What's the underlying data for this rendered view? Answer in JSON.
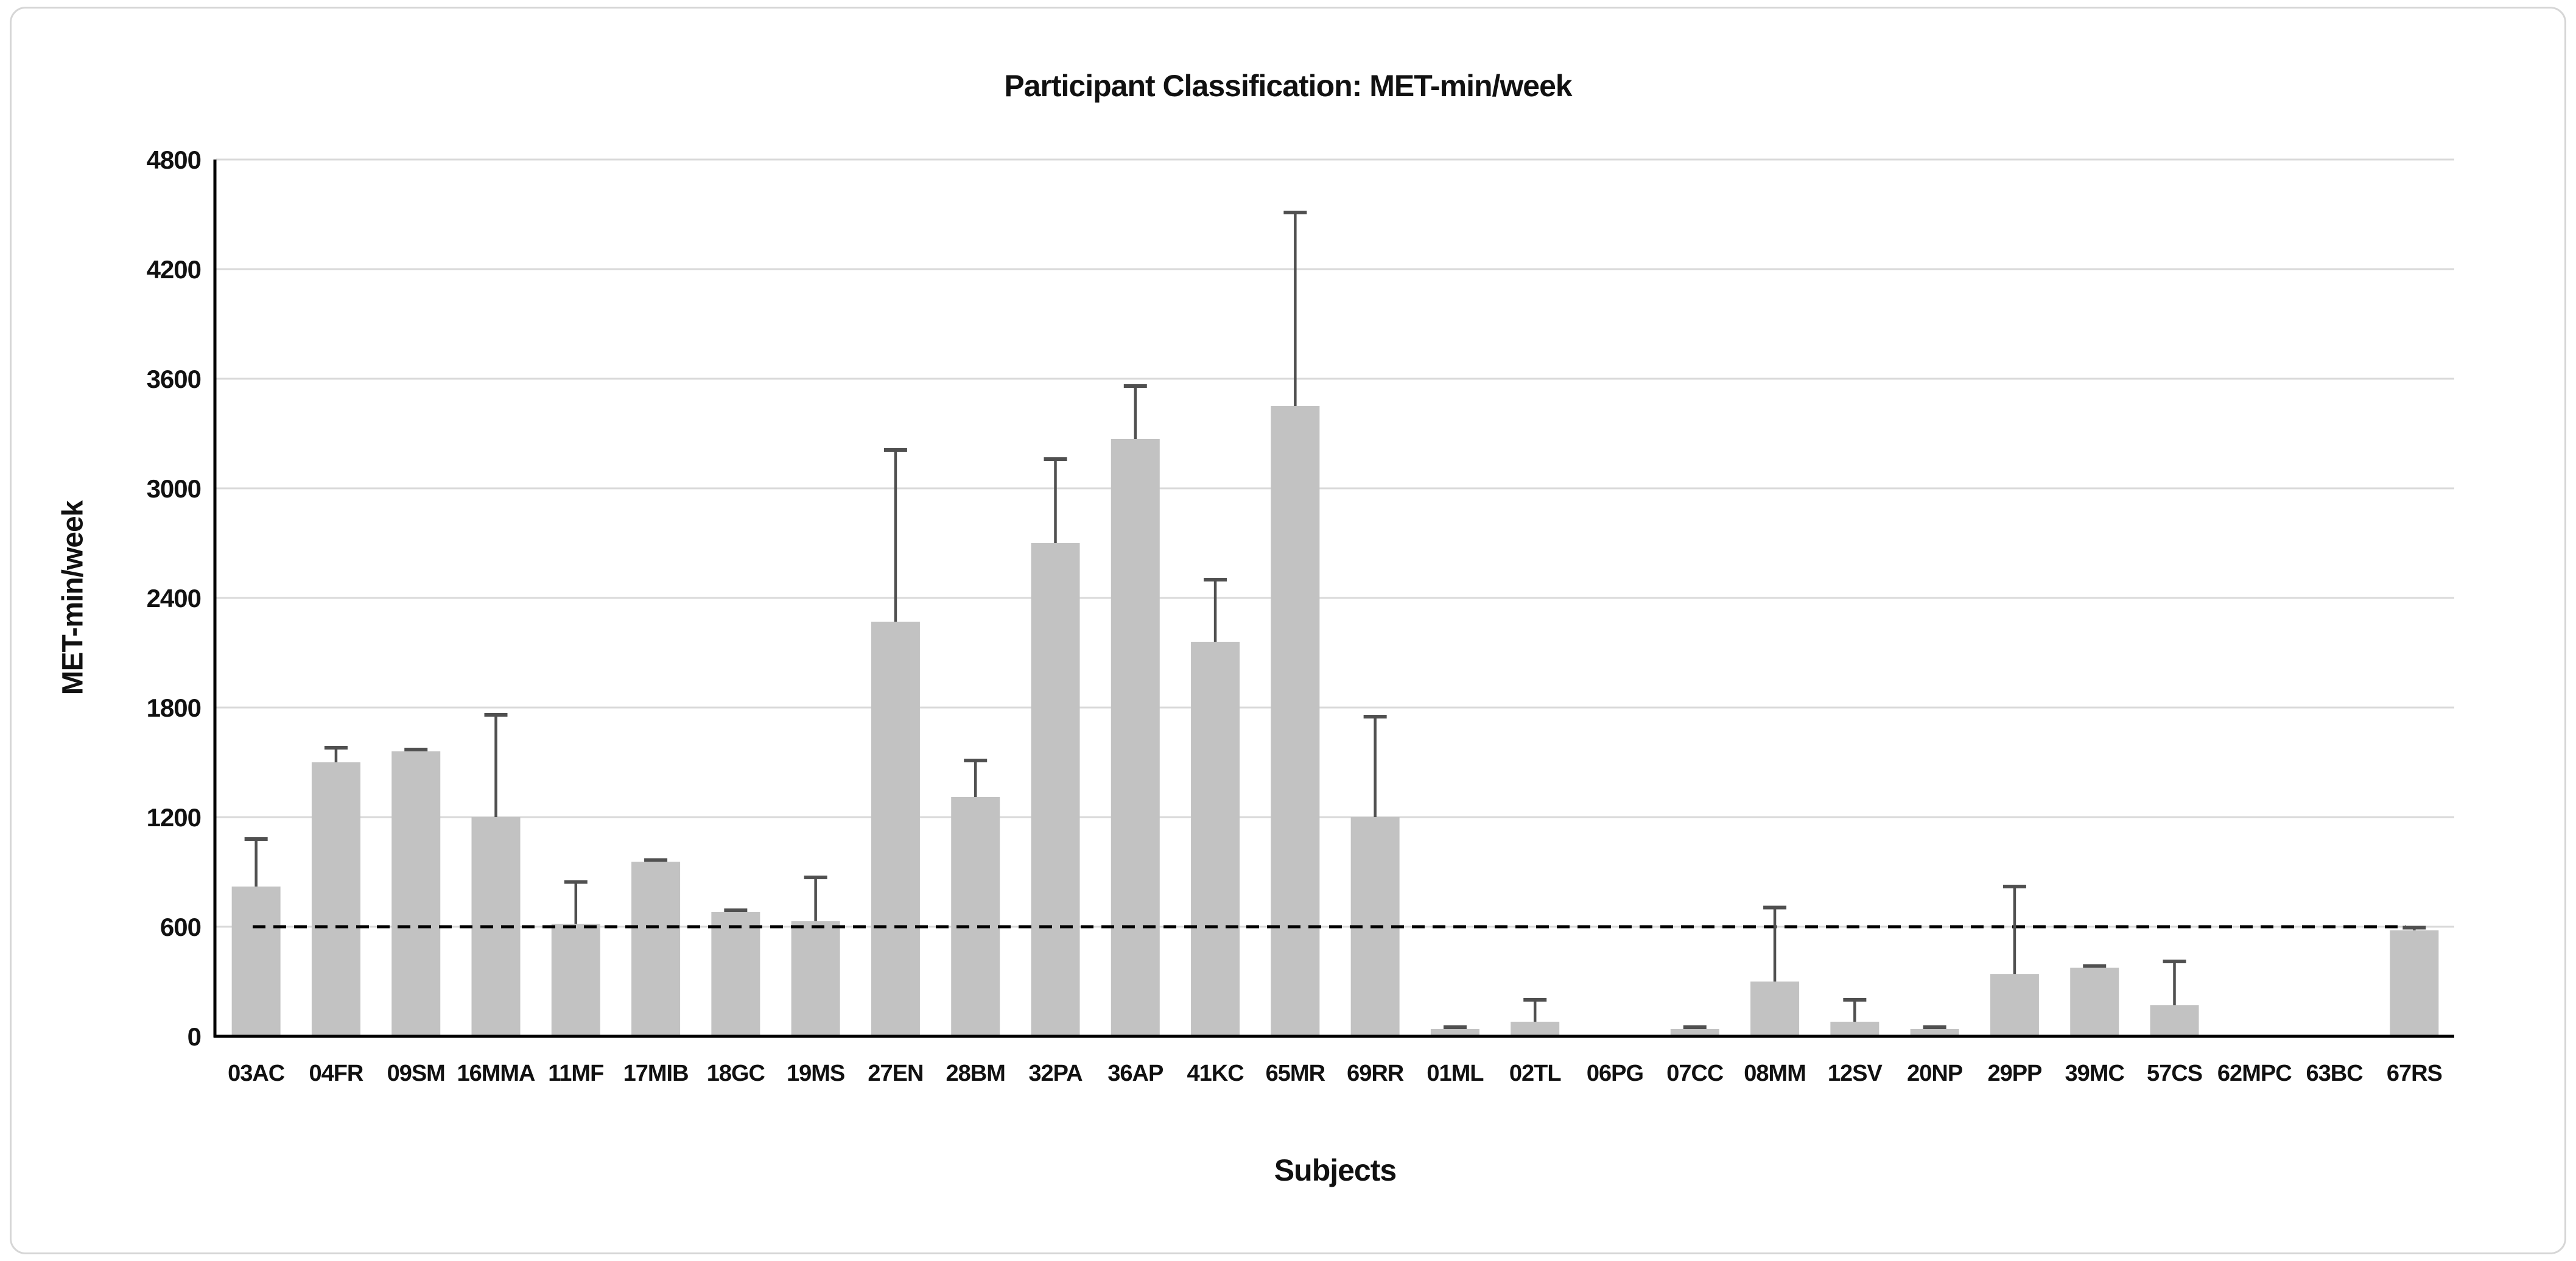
{
  "chart_data": {
    "type": "bar",
    "title": "Participant Classification: MET-min/week",
    "xlabel": "Subjects",
    "ylabel": "MET-min/week",
    "ylim": [
      0,
      4800
    ],
    "ytick_step": 600,
    "grid": true,
    "legend": "none",
    "reference_line": {
      "value": 600,
      "style": "dashed",
      "color": "#000000"
    },
    "bar_color": "#c2c2c2",
    "error_color": "#505050",
    "categories": [
      "03AC",
      "04FR",
      "09SM",
      "16MMA",
      "11MF",
      "17MIB",
      "18GC",
      "19MS",
      "27EN",
      "28BM",
      "32PA",
      "36AP",
      "41KC",
      "65MR",
      "69RR",
      "01ML",
      "02TL",
      "06PG",
      "07CC",
      "08MM",
      "12SV",
      "20NP",
      "29PP",
      "39MC",
      "57CS",
      "62MPC",
      "63BC",
      "67RS"
    ],
    "values": [
      820,
      1500,
      1560,
      1200,
      615,
      955,
      680,
      630,
      2270,
      1310,
      2700,
      3270,
      2160,
      3450,
      1200,
      40,
      80,
      0,
      40,
      300,
      80,
      40,
      340,
      375,
      170,
      0,
      0,
      580
    ],
    "error_bar_tops": [
      1080,
      1580,
      1570,
      1760,
      845,
      965,
      690,
      870,
      3210,
      1510,
      3160,
      3560,
      2500,
      4510,
      1750,
      50,
      200,
      null,
      50,
      705,
      200,
      50,
      820,
      385,
      410,
      null,
      null,
      595
    ],
    "y_tick_labels": [
      "0",
      "600",
      "1200",
      "1800",
      "2400",
      "3000",
      "3600",
      "4200",
      "4800"
    ]
  }
}
